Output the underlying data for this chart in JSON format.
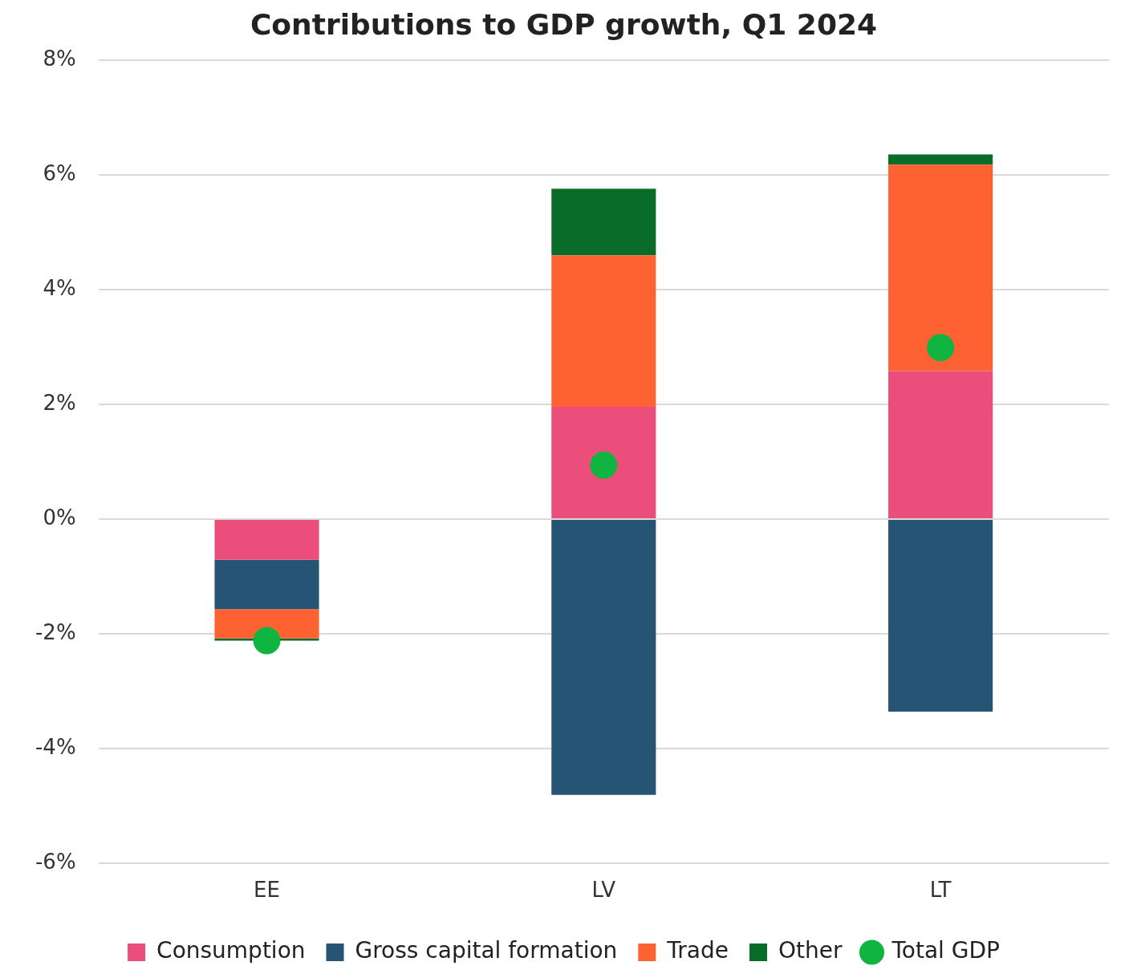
{
  "chart_data": {
    "type": "bar",
    "title": "Contributions to GDP growth, Q1 2024",
    "categories": [
      "EE",
      "LV",
      "LT"
    ],
    "stacked": true,
    "series": [
      {
        "name": "Consumption",
        "color": "#ec4e7c",
        "values": [
          -0.71,
          1.96,
          2.58
        ]
      },
      {
        "name": "Gross capital formation",
        "color": "#255474",
        "values": [
          -0.86,
          -4.81,
          -3.36
        ]
      },
      {
        "name": "Trade",
        "color": "#ff6232",
        "values": [
          -0.51,
          2.64,
          3.6
        ]
      },
      {
        "name": "Other",
        "color": "#096c29",
        "values": [
          -0.04,
          1.16,
          0.18
        ]
      },
      {
        "name": "Total GDP",
        "type": "scatter",
        "marker": "circle",
        "color": "#10b441",
        "x": [
          "EE",
          "LV",
          "LT"
        ],
        "values": [
          -2.12,
          0.94,
          2.99
        ]
      }
    ],
    "ylim": [
      -6,
      8
    ],
    "yticks": [
      {
        "value": -6,
        "label": "-6%"
      },
      {
        "value": -4,
        "label": "-4%"
      },
      {
        "value": -2,
        "label": "-2%"
      },
      {
        "value": 0,
        "label": "0%"
      },
      {
        "value": 2,
        "label": "2%"
      },
      {
        "value": 4,
        "label": "4%"
      },
      {
        "value": 6,
        "label": "6%"
      },
      {
        "value": 8,
        "label": "8%"
      }
    ],
    "grid": "y",
    "legend": "bottom"
  }
}
